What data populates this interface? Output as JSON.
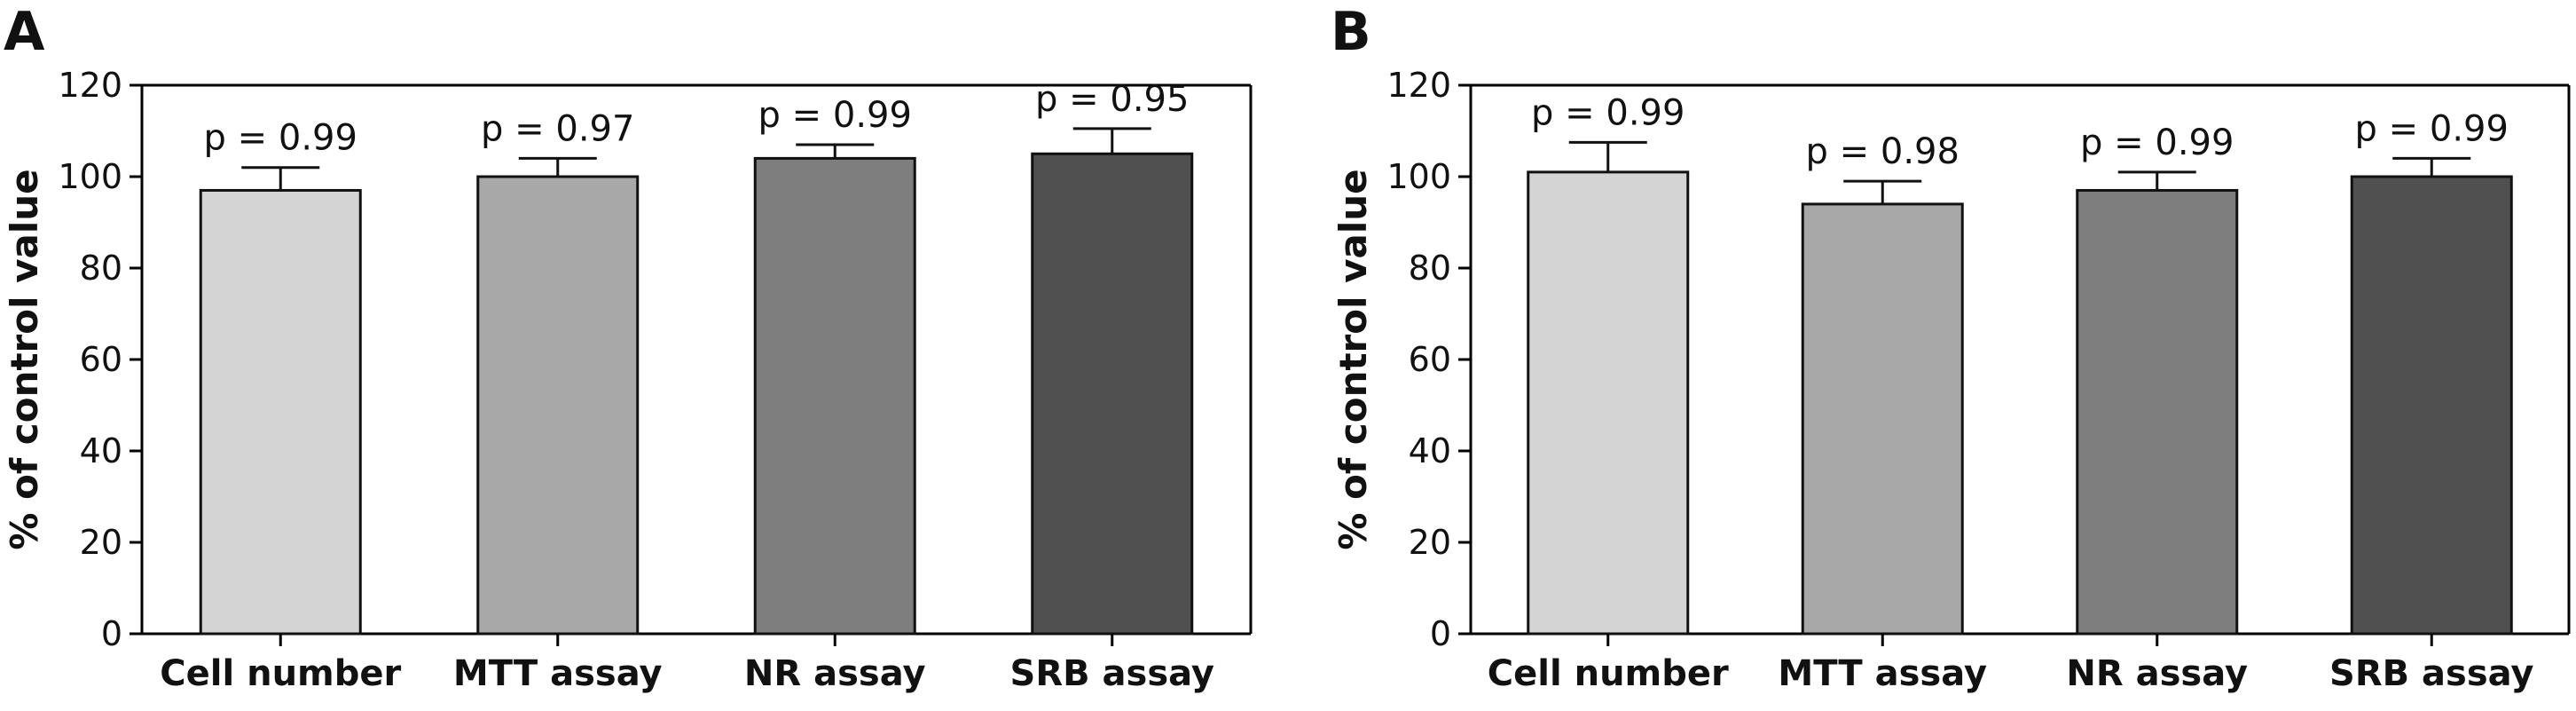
{
  "chart_data": [
    {
      "type": "bar",
      "panel": "A",
      "categories": [
        "Cell number",
        "MTT assay",
        "NR assay",
        "SRB assay"
      ],
      "values": [
        97,
        100,
        104,
        105
      ],
      "error_upper": [
        5,
        4,
        3,
        5.5
      ],
      "annotations": [
        "p = 0.99",
        "p = 0.97",
        "p = 0.99",
        "p = 0.95"
      ],
      "ylabel": "% of control value",
      "ylim": [
        0,
        120
      ],
      "yticks": [
        0,
        20,
        40,
        60,
        80,
        100,
        120
      ],
      "bar_colors": [
        "#d4d4d4",
        "#a8a8a8",
        "#7e7e7e",
        "#505050"
      ],
      "grid": false
    },
    {
      "type": "bar",
      "panel": "B",
      "categories": [
        "Cell number",
        "MTT assay",
        "NR assay",
        "SRB assay"
      ],
      "values": [
        101,
        94,
        97,
        100
      ],
      "error_upper": [
        6.5,
        5,
        4,
        4
      ],
      "annotations": [
        "p = 0.99",
        "p = 0.98",
        "p = 0.99",
        "p = 0.99"
      ],
      "ylabel": "% of control value",
      "ylim": [
        0,
        120
      ],
      "yticks": [
        0,
        20,
        40,
        60,
        80,
        100,
        120
      ],
      "bar_colors": [
        "#d4d4d4",
        "#a8a8a8",
        "#7e7e7e",
        "#505050"
      ],
      "grid": false
    }
  ]
}
